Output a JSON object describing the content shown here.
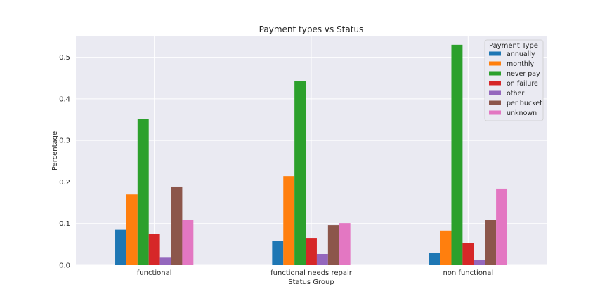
{
  "chart_data": {
    "type": "bar",
    "title": "Payment types vs Status",
    "xlabel": "Status Group",
    "ylabel": "Percentage",
    "ylim": [
      0,
      0.55
    ],
    "yticks": [
      "0.0",
      "0.1",
      "0.2",
      "0.3",
      "0.4",
      "0.5"
    ],
    "categories": [
      "functional",
      "functional needs repair",
      "non functional"
    ],
    "grid": true,
    "legend": {
      "title": "Payment Type",
      "placement": "top-right"
    },
    "series": [
      {
        "name": "annually",
        "color": "#1f77b4",
        "values": [
          0.085,
          0.058,
          0.029
        ]
      },
      {
        "name": "monthly",
        "color": "#ff7f0e",
        "values": [
          0.17,
          0.214,
          0.083
        ]
      },
      {
        "name": "never pay",
        "color": "#2ca02c",
        "values": [
          0.352,
          0.443,
          0.53
        ]
      },
      {
        "name": "on failure",
        "color": "#d62728",
        "values": [
          0.075,
          0.064,
          0.053
        ]
      },
      {
        "name": "other",
        "color": "#9467bd",
        "values": [
          0.018,
          0.027,
          0.013
        ]
      },
      {
        "name": "per bucket",
        "color": "#8c564b",
        "values": [
          0.189,
          0.096,
          0.109
        ]
      },
      {
        "name": "unknown",
        "color": "#e377c2",
        "values": [
          0.109,
          0.101,
          0.184
        ]
      }
    ]
  }
}
